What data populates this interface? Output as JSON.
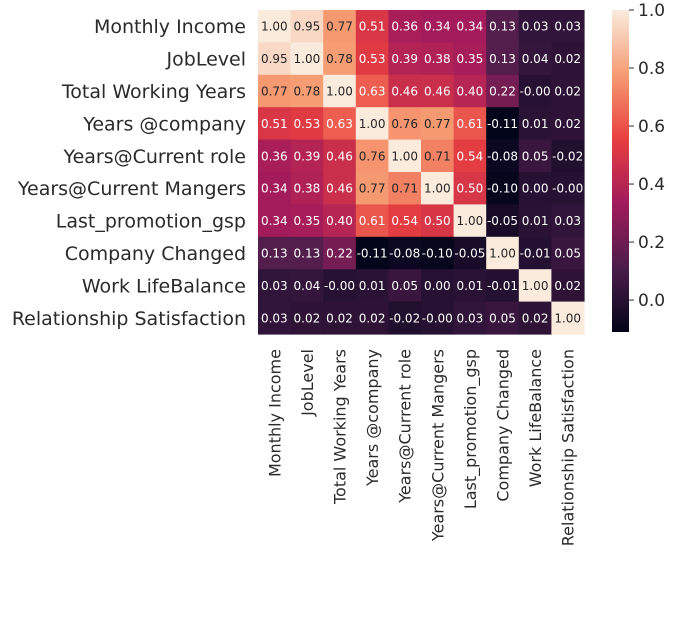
{
  "chart_data": {
    "type": "heatmap",
    "labels": [
      "Monthly Income",
      "JobLevel",
      "Total Working Years",
      "Years @company",
      "Years@Current role",
      "Years@Current Mangers",
      "Last_promotion_gsp",
      "Company Changed",
      "Work LifeBalance",
      "Relationship Satisfaction"
    ],
    "value_texts": [
      [
        "1.00",
        "0.95",
        "0.77",
        "0.51",
        "0.36",
        "0.34",
        "0.34",
        "0.13",
        "0.03",
        "0.03"
      ],
      [
        "0.95",
        "1.00",
        "0.78",
        "0.53",
        "0.39",
        "0.38",
        "0.35",
        "0.13",
        "0.04",
        "0.02"
      ],
      [
        "0.77",
        "0.78",
        "1.00",
        "0.63",
        "0.46",
        "0.46",
        "0.40",
        "0.22",
        "-0.00",
        "0.02"
      ],
      [
        "0.51",
        "0.53",
        "0.63",
        "1.00",
        "0.76",
        "0.77",
        "0.61",
        "-0.11",
        "0.01",
        "0.02"
      ],
      [
        "0.36",
        "0.39",
        "0.46",
        "0.76",
        "1.00",
        "0.71",
        "0.54",
        "-0.08",
        "0.05",
        "-0.02"
      ],
      [
        "0.34",
        "0.38",
        "0.46",
        "0.77",
        "0.71",
        "1.00",
        "0.50",
        "-0.10",
        "0.00",
        "-0.00"
      ],
      [
        "0.34",
        "0.35",
        "0.40",
        "0.61",
        "0.54",
        "0.50",
        "1.00",
        "-0.05",
        "0.01",
        "0.03"
      ],
      [
        "0.13",
        "0.13",
        "0.22",
        "-0.11",
        "-0.08",
        "-0.10",
        "-0.05",
        "1.00",
        "-0.01",
        "0.05"
      ],
      [
        "0.03",
        "0.04",
        "-0.00",
        "0.01",
        "0.05",
        "0.00",
        "0.01",
        "-0.01",
        "1.00",
        "0.02"
      ],
      [
        "0.03",
        "0.02",
        "0.02",
        "0.02",
        "-0.02",
        "-0.00",
        "0.03",
        "0.05",
        "0.02",
        "1.00"
      ]
    ],
    "colorbar": {
      "ticks": [
        "1.0",
        "0.8",
        "0.6",
        "0.4",
        "0.2",
        "0.0"
      ],
      "range": [
        -0.11,
        1.0
      ]
    },
    "colormap": [
      "#03051a",
      "#4c1d4b",
      "#a11a5b",
      "#e83f3f",
      "#f69c73",
      "#faebdd"
    ],
    "grid": false
  }
}
